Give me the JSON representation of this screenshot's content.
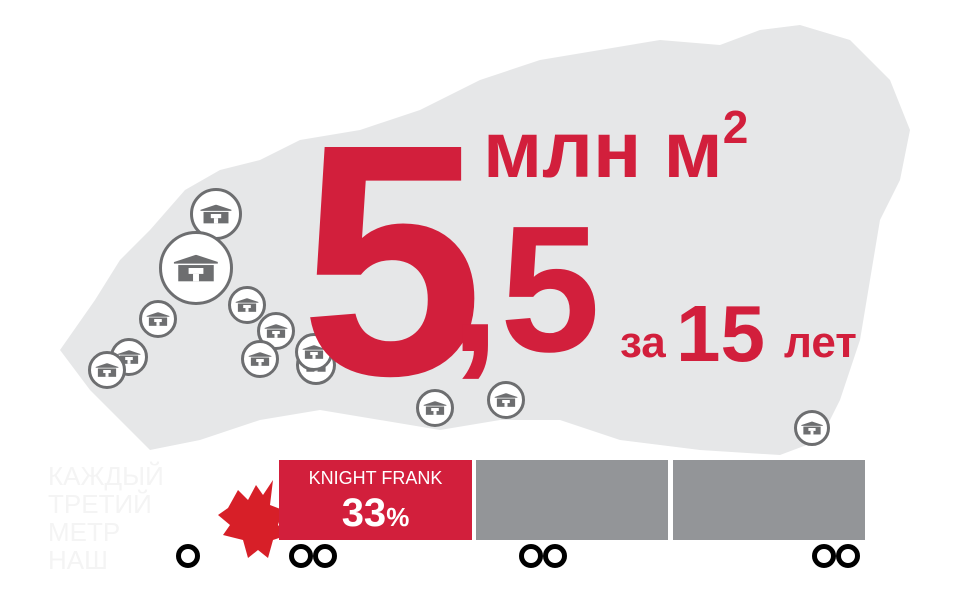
{
  "headline": {
    "number": "5",
    "decimal": ",5",
    "unit": "млн м",
    "unit_sup": "2",
    "za": "за",
    "years": "15",
    "let": "лет"
  },
  "side_text": [
    "Каждый",
    "третий",
    "метр",
    "наш"
  ],
  "truck": {
    "company": "KNIGHT FRANK",
    "share": "33",
    "share_unit": "%",
    "share_fraction": 0.33
  },
  "colors": {
    "accent": "#d21f3c",
    "container_gray": "#939598",
    "map_gray": "#e6e7e8",
    "icon_gray": "#6d6e70"
  },
  "icons": {
    "marker": "warehouse-icon",
    "logo": "double-headed-eagle-icon"
  }
}
